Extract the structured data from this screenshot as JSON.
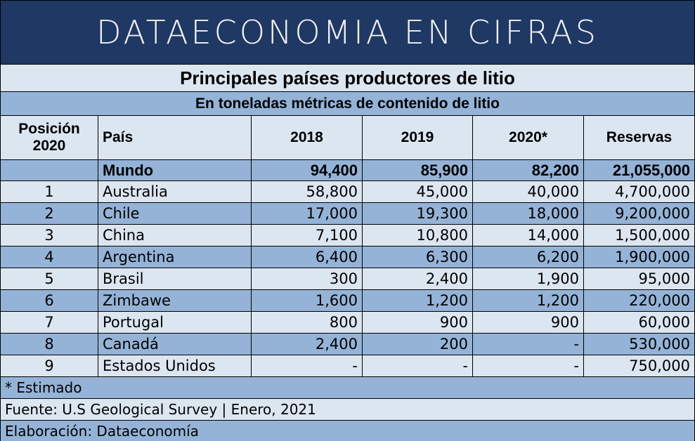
{
  "header": {
    "title": "DATAECONOMIA EN CIFRAS"
  },
  "table": {
    "title": "Principales países productores de litio",
    "subtitle": "En toneladas métricas de contenido de litio",
    "columns": [
      "Posición 2020",
      "País",
      "2018",
      "2019",
      "2020*",
      "Reservas"
    ],
    "rows": [
      [
        null,
        "Mundo",
        "94,400",
        "85,900",
        "82,200",
        "21,055,000"
      ],
      [
        "1",
        "Australia",
        "58,800",
        "45,000",
        "40,000",
        "4,700,000"
      ],
      [
        "2",
        "Chile",
        "17,000",
        "19,300",
        "18,000",
        "9,200,000"
      ],
      [
        "3",
        "China",
        "7,100",
        "10,800",
        "14,000",
        "1,500,000"
      ],
      [
        "4",
        "Argentina",
        "6,400",
        "6,300",
        "6,200",
        "1,900,000"
      ],
      [
        "5",
        "Brasil",
        "300",
        "2,400",
        "1,900",
        "95,000"
      ],
      [
        "6",
        "Zimbawe",
        "1,600",
        "1,200",
        "1,200",
        "220,000"
      ],
      [
        "7",
        "Portugal",
        "800",
        "900",
        "900",
        "60,000"
      ],
      [
        "8",
        "Canadá",
        "2,400",
        "200",
        "-",
        "530,000"
      ],
      [
        "9",
        "Estados Unidos",
        "-",
        "-",
        "-",
        "750,000"
      ]
    ],
    "notes": [
      "* Estimado",
      "Fuente: U.S Geological Survey | Enero, 2021",
      "Elaboración: Dataeconomía"
    ]
  }
}
